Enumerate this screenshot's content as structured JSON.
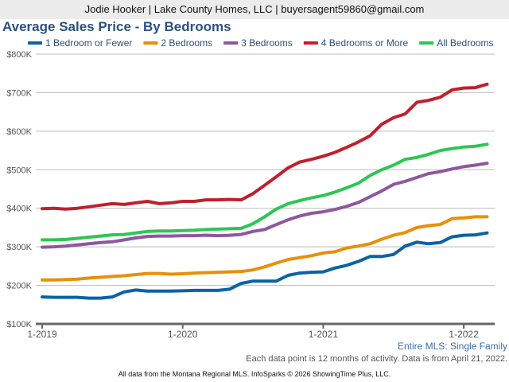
{
  "header": {
    "text": "Jodie Hooker | Lake County Homes, LLC | buyersagent59860@gmail.com"
  },
  "subtitle": "Entire MLS: Single Family",
  "note": "Each data point is 12 months of activity. Data is from April 21, 2022.",
  "footer": "All data from the Montana Regional MLS. InfoSparks © 2026 ShowingTime Plus, LLC.",
  "chart_data": {
    "type": "line",
    "title": "Average Sales Price - By Bedrooms",
    "x_start": "2019-01",
    "x_step": "1 month",
    "x_ticks": [
      "1-2019",
      "1-2020",
      "1-2021",
      "1-2022"
    ],
    "y_ticks": [
      "$100K",
      "$200K",
      "$300K",
      "$400K",
      "$500K",
      "$600K",
      "$700K",
      "$800K"
    ],
    "ylim": [
      100,
      800
    ],
    "y_unit": "thousands USD",
    "grid": "horizontal",
    "legend": "top",
    "series": [
      {
        "name": "1 Bedroom or Fewer",
        "color": "#0b63a5",
        "values": [
          170,
          169,
          169,
          169,
          167,
          167,
          170,
          183,
          188,
          185,
          185,
          185,
          186,
          187,
          187,
          187,
          190,
          205,
          211,
          211,
          211,
          226,
          232,
          234,
          235,
          245,
          252,
          262,
          275,
          275,
          280,
          302,
          312,
          308,
          311,
          326,
          330,
          331,
          336
        ]
      },
      {
        "name": "2 Bedrooms",
        "color": "#e8900a",
        "values": [
          214,
          214,
          215,
          216,
          219,
          221,
          223,
          225,
          228,
          231,
          231,
          229,
          230,
          232,
          233,
          234,
          235,
          236,
          240,
          248,
          258,
          267,
          272,
          277,
          284,
          287,
          297,
          302,
          308,
          320,
          330,
          337,
          350,
          355,
          358,
          373,
          375,
          378,
          378
        ]
      },
      {
        "name": "3 Bedrooms",
        "color": "#8e57a0",
        "values": [
          299,
          300,
          302,
          305,
          308,
          311,
          313,
          318,
          323,
          327,
          328,
          328,
          329,
          329,
          330,
          329,
          330,
          332,
          340,
          345,
          358,
          370,
          380,
          387,
          391,
          397,
          405,
          415,
          430,
          445,
          462,
          470,
          480,
          490,
          495,
          502,
          508,
          512,
          517
        ]
      },
      {
        "name": "4 Bedrooms or More",
        "color": "#c0202e",
        "values": [
          399,
          400,
          398,
          400,
          404,
          408,
          412,
          410,
          414,
          418,
          412,
          414,
          418,
          418,
          422,
          422,
          423,
          422,
          438,
          460,
          482,
          505,
          520,
          527,
          535,
          545,
          558,
          572,
          588,
          618,
          635,
          645,
          675,
          680,
          688,
          707,
          712,
          713,
          722
        ]
      },
      {
        "name": "All Bedrooms",
        "color": "#2dc653",
        "values": [
          318,
          318,
          319,
          322,
          325,
          328,
          331,
          332,
          336,
          340,
          341,
          341,
          342,
          343,
          345,
          346,
          347,
          348,
          360,
          378,
          398,
          412,
          420,
          427,
          433,
          442,
          453,
          465,
          485,
          500,
          512,
          527,
          532,
          540,
          550,
          555,
          559,
          561,
          566
        ]
      }
    ]
  }
}
